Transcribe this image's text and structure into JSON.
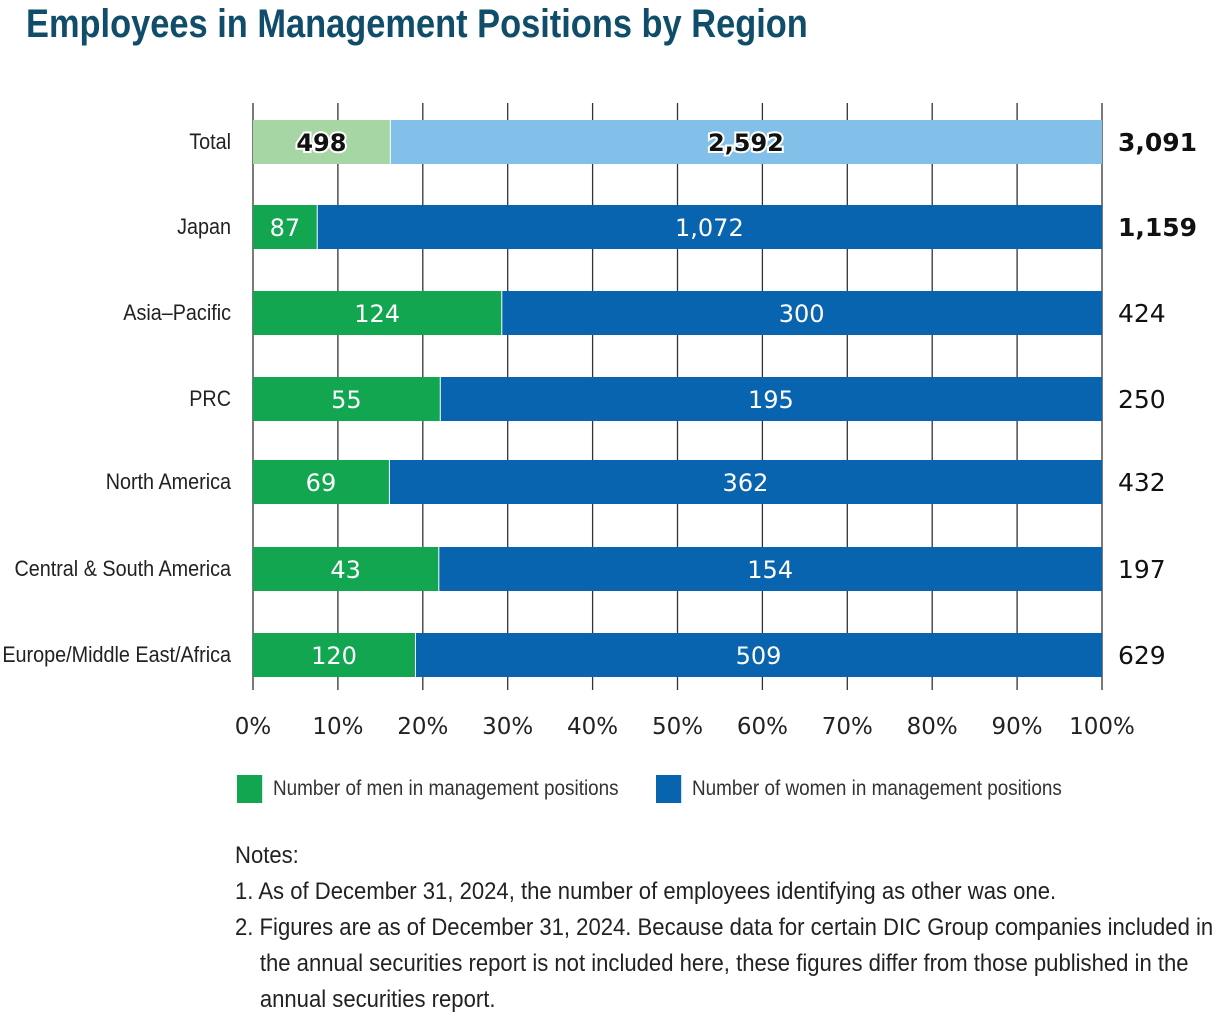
{
  "chart_data": {
    "type": "bar",
    "stacked": true,
    "normalized": true,
    "orientation": "horizontal",
    "title": "Employees in Management Positions by Region",
    "categories": [
      "Total",
      "Japan",
      "Asia–Pacific",
      "PRC",
      "North America",
      "Central & South America",
      "Europe/Middle East/Africa"
    ],
    "series": [
      {
        "name": "Number of men in management positions",
        "values": [
          498,
          87,
          124,
          55,
          69,
          43,
          120
        ],
        "color": "#13a651",
        "total_color": "#a5d6a3"
      },
      {
        "name": "Number of women in management positions",
        "values": [
          2592,
          1072,
          300,
          195,
          362,
          154,
          509
        ],
        "color": "#0964b0",
        "total_color": "#82c0e9"
      }
    ],
    "totals": [
      "3,091",
      "1,159",
      "424",
      "250",
      "432",
      "197",
      "629"
    ],
    "value_labels": [
      [
        "498",
        "87",
        "124",
        "55",
        "69",
        "43",
        "120"
      ],
      [
        "2,592",
        "1,072",
        "300",
        "195",
        "362",
        "154",
        "509"
      ]
    ],
    "xticks": [
      "0%",
      "10%",
      "20%",
      "30%",
      "40%",
      "50%",
      "60%",
      "70%",
      "80%",
      "90%",
      "100%"
    ],
    "xlim": [
      0,
      100
    ],
    "grid": true,
    "legend": "bottom"
  },
  "notes": {
    "heading": "Notes:",
    "items": [
      "1. As of December 31, 2024, the number of employees identifying as other was one.",
      "2. Figures are as of December 31, 2024. Because data for certain DIC Group companies included in the annual securities report is not included here, these figures differ from those published in the annual securities report."
    ]
  }
}
